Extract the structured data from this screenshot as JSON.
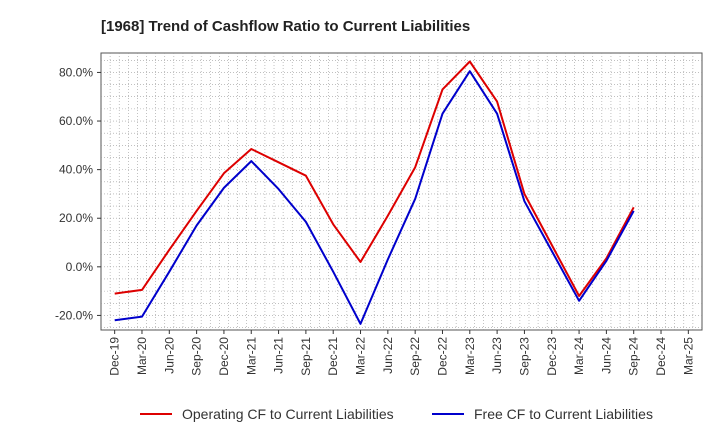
{
  "chart_data": {
    "type": "line",
    "title": "[1968]  Trend of Cashflow Ratio to Current Liabilities",
    "categories": [
      "Dec-19",
      "Mar-20",
      "Jun-20",
      "Sep-20",
      "Dec-20",
      "Mar-21",
      "Jun-21",
      "Sep-21",
      "Dec-21",
      "Mar-22",
      "Jun-22",
      "Sep-22",
      "Dec-22",
      "Mar-23",
      "Jun-23",
      "Sep-23",
      "Dec-23",
      "Mar-24",
      "Jun-24",
      "Sep-24",
      "Dec-24",
      "Mar-25"
    ],
    "y_ticks": [
      "80.0%",
      "60.0%",
      "40.0%",
      "20.0%",
      "0.0%",
      "-20.0%"
    ],
    "y_tick_values": [
      80,
      60,
      40,
      20,
      0,
      -20
    ],
    "ylim": [
      -26,
      88
    ],
    "grid": true,
    "legend_position": "bottom",
    "series": [
      {
        "name": "Operating CF to Current Liabilities",
        "color": "#dd0000",
        "values": [
          -11,
          -9.5,
          7,
          23,
          38.5,
          48.5,
          43,
          37.5,
          17.5,
          2,
          21,
          41,
          73,
          84.5,
          68,
          30,
          9,
          -12,
          3.5,
          24.5,
          null,
          null
        ]
      },
      {
        "name": "Free CF to Current Liabilities",
        "color": "#0000cc",
        "values": [
          -22,
          -20.5,
          -2,
          17,
          32.5,
          43.5,
          32,
          18.5,
          -2,
          -23.5,
          3,
          28,
          63,
          80.5,
          63,
          27,
          6.5,
          -14,
          2.5,
          23,
          null,
          null
        ]
      }
    ]
  }
}
